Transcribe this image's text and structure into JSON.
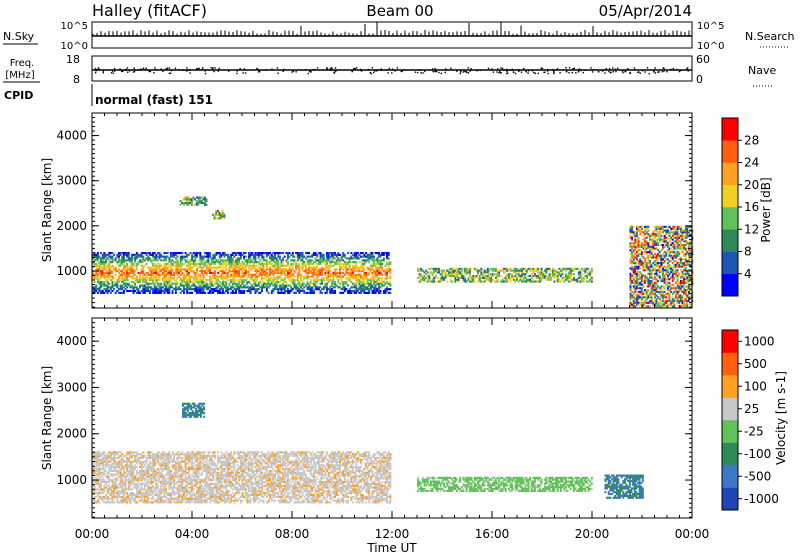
{
  "header": {
    "station": "Halley (fitACF)",
    "beam": "Beam 00",
    "date": "05/Apr/2014"
  },
  "status_panels": {
    "nsky": {
      "label": "N.Sky",
      "ticks": [
        "10^5",
        "10^0"
      ]
    },
    "nsearch": {
      "label": "N.Search",
      "ticks": [
        "10^5",
        "10^0"
      ]
    },
    "freq": {
      "label_lines": [
        "Freq.",
        "[MHz]"
      ],
      "ticks": [
        "18",
        "8"
      ]
    },
    "nave": {
      "label": "Nave",
      "ticks": [
        "60",
        "0"
      ]
    },
    "cpid": {
      "label": "CPID",
      "value": "normal (fast) 151"
    }
  },
  "x_axis": {
    "label": "Time UT",
    "ticks": [
      "00:00",
      "04:00",
      "08:00",
      "12:00",
      "16:00",
      "20:00",
      "00:00"
    ],
    "range_hours": [
      0,
      24
    ]
  },
  "chart_data": [
    {
      "type": "heatmap",
      "quantity": "power",
      "ylabel": "Slant Range [km]",
      "yticks": [
        "1000",
        "2000",
        "3000",
        "4000"
      ],
      "ylim_km": [
        180,
        4500
      ],
      "colorbar": {
        "label": "Power [dB]",
        "ticks": [
          "28",
          "24",
          "20",
          "16",
          "12",
          "8",
          "4"
        ],
        "range": [
          0,
          32
        ],
        "colors": [
          "#0000ff",
          "#1e56b4",
          "#2e8b57",
          "#61c25a",
          "#f0d020",
          "#ffa020",
          "#ff6010",
          "#ff0000"
        ]
      },
      "echo_regions": [
        {
          "t": [
            0.0,
            11.9
          ],
          "r_km": [
            500,
            1400
          ],
          "level": "high"
        },
        {
          "t": [
            3.5,
            4.6
          ],
          "r_km": [
            2450,
            2650
          ],
          "level": "mid"
        },
        {
          "t": [
            4.8,
            5.3
          ],
          "r_km": [
            2150,
            2350
          ],
          "level": "mid"
        },
        {
          "t": [
            13.0,
            20.0
          ],
          "r_km": [
            750,
            1050
          ],
          "level": "mid"
        },
        {
          "t": [
            21.5,
            24.0
          ],
          "r_km": [
            200,
            2000
          ],
          "level": "mixed"
        }
      ]
    },
    {
      "type": "heatmap",
      "quantity": "velocity",
      "ylabel": "Slant Range [km]",
      "yticks": [
        "1000",
        "2000",
        "3000",
        "4000"
      ],
      "ylim_km": [
        180,
        4500
      ],
      "colorbar": {
        "label": "Velocity [m s-1]",
        "ticks": [
          "1000",
          "500",
          "100",
          "25",
          "-25",
          "-100",
          "-500",
          "-1000"
        ],
        "colors": [
          "#1e46b4",
          "#3c7ac8",
          "#2e8b57",
          "#61c25a",
          "#c8c8c8",
          "#ffa020",
          "#ff6010",
          "#ff0000"
        ]
      },
      "echo_regions": [
        {
          "t": [
            0.0,
            11.9
          ],
          "r_km": [
            500,
            1600
          ],
          "velocity": "positive"
        },
        {
          "t": [
            3.6,
            4.5
          ],
          "r_km": [
            2350,
            2650
          ],
          "velocity": "negative"
        },
        {
          "t": [
            13.0,
            20.0
          ],
          "r_km": [
            750,
            1050
          ],
          "velocity": "near-zero"
        },
        {
          "t": [
            20.5,
            22.0
          ],
          "r_km": [
            600,
            1100
          ],
          "velocity": "negative"
        }
      ]
    }
  ]
}
